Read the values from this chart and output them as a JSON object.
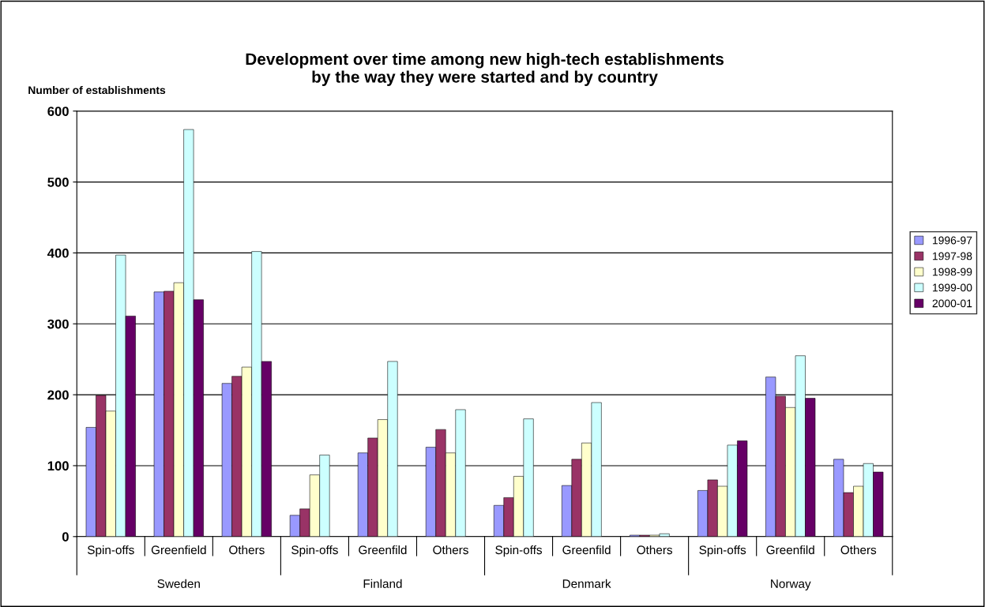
{
  "chart_data": {
    "type": "bar",
    "title": "Development over time among new high-tech establishments\nby the way they were started and by country",
    "ylabel": "Number of establishments",
    "categories": [
      "Spin-offs",
      "Greenfield",
      "Others",
      "Spin-offs",
      "Greenfild",
      "Others",
      "Spin-offs",
      "Greenfild",
      "Others",
      "Spin-offs",
      "Greenfild",
      "Others"
    ],
    "annotations": [
      "Sweden",
      "Finland",
      "Denmark",
      "Norway"
    ],
    "series": [
      {
        "name": "1996-97",
        "color": "#9999ff",
        "values": [
          154,
          345,
          216,
          30,
          118,
          126,
          44,
          72,
          2,
          65,
          225,
          109
        ]
      },
      {
        "name": "1997-98",
        "color": "#993366",
        "values": [
          199,
          346,
          226,
          39,
          139,
          151,
          55,
          109,
          2,
          80,
          198,
          62
        ]
      },
      {
        "name": "1998-99",
        "color": "#ffffcc",
        "values": [
          177,
          358,
          239,
          87,
          165,
          118,
          85,
          132,
          2,
          71,
          182,
          71
        ]
      },
      {
        "name": "1999-00",
        "color": "#ccffff",
        "values": [
          397,
          574,
          402,
          115,
          247,
          179,
          166,
          189,
          4,
          129,
          255,
          103
        ]
      },
      {
        "name": "2000-01",
        "color": "#660066",
        "values": [
          311,
          334,
          247,
          null,
          null,
          null,
          null,
          null,
          null,
          135,
          195,
          91
        ]
      }
    ],
    "ylim": [
      0,
      600
    ],
    "yticks": [
      0,
      100,
      200,
      300,
      400,
      500,
      600
    ],
    "grid": "y",
    "legend": "right"
  }
}
